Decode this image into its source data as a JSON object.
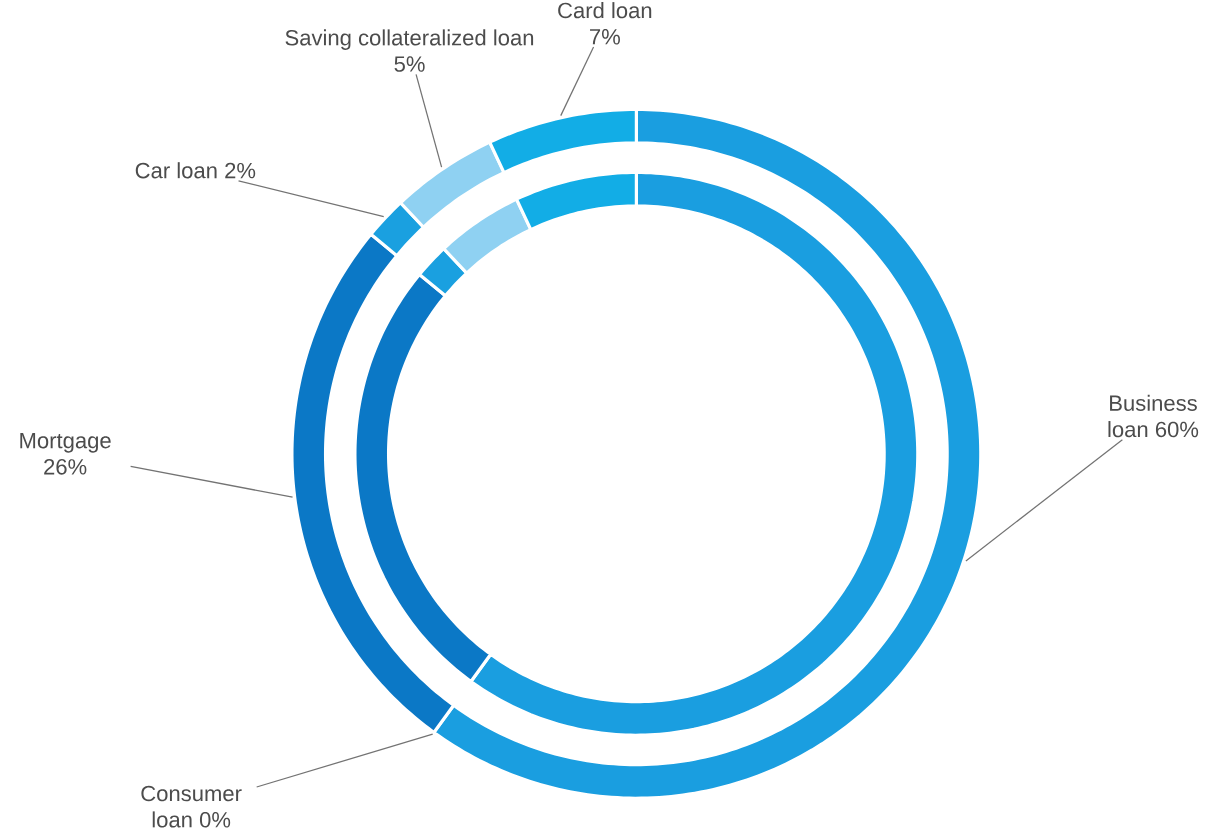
{
  "chart_data": {
    "type": "donut",
    "categories": [
      "Business loan",
      "Consumer loan",
      "Mortgage",
      "Car loan",
      "Saving collateralized loan",
      "Card loan"
    ],
    "colors": [
      "#1a9ee0",
      "#1a9ee0",
      "#0b78c6",
      "#1aa0e0",
      "#8fd1f2",
      "#12ade6"
    ],
    "series": [
      {
        "values": [
          60,
          0,
          26,
          2,
          5,
          7
        ],
        "value_labels": [
          "60%",
          "0%",
          "26%",
          "2%",
          "5%",
          "7%"
        ]
      },
      {
        "values": [
          60,
          0,
          26,
          2,
          5,
          7
        ]
      }
    ]
  }
}
